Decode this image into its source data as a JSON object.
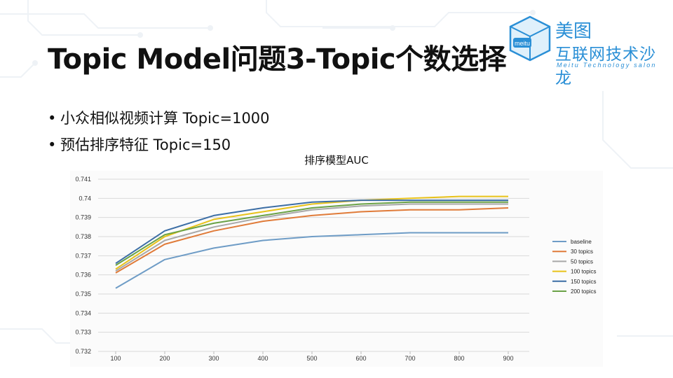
{
  "slide": {
    "title": "Topic Model问题3-Topic个数选择",
    "bullets": [
      {
        "text": "小众相似视频计算 Topic=1000"
      },
      {
        "text": "预估排序特征 Topic=150"
      }
    ]
  },
  "logo": {
    "box_text": "meitu",
    "line1": "美图",
    "line2": "互联网技术沙龙",
    "line3": "Meitu Technology salon",
    "color": "#2a8fd6"
  },
  "chart_data": {
    "type": "line",
    "title": "排序模型AUC",
    "xlabel": "",
    "ylabel": "",
    "x": [
      100,
      200,
      300,
      400,
      500,
      600,
      700,
      800,
      900
    ],
    "x_tick_labels": [
      "100",
      "200",
      "300",
      "400",
      "500",
      "600",
      "700",
      "800",
      "900"
    ],
    "ylim": [
      0.732,
      0.741
    ],
    "y_ticks": [
      0.732,
      0.733,
      0.734,
      0.735,
      0.736,
      0.737,
      0.738,
      0.739,
      0.74,
      0.741
    ],
    "y_tick_labels": [
      "0.732",
      "0.733",
      "0.734",
      "0.735",
      "0.736",
      "0.737",
      "0.738",
      "0.739",
      "0.74",
      "0.741"
    ],
    "grid": true,
    "legend_position": "right",
    "series": [
      {
        "name": "baseline",
        "color": "#6e9cc6",
        "values": [
          0.7353,
          0.7368,
          0.7374,
          0.7378,
          0.738,
          0.7381,
          0.7382,
          0.7382,
          0.7382
        ]
      },
      {
        "name": "30 topics",
        "color": "#e07b39",
        "values": [
          0.7361,
          0.7376,
          0.7383,
          0.7388,
          0.7391,
          0.7393,
          0.7394,
          0.7394,
          0.7395
        ]
      },
      {
        "name": "50 topics",
        "color": "#a8a8a8",
        "values": [
          0.7362,
          0.7378,
          0.7385,
          0.739,
          0.7394,
          0.7396,
          0.7397,
          0.7397,
          0.7397
        ]
      },
      {
        "name": "100 topics",
        "color": "#e8c21a",
        "values": [
          0.7363,
          0.738,
          0.7389,
          0.7393,
          0.7397,
          0.7399,
          0.74,
          0.7401,
          0.7401
        ]
      },
      {
        "name": "150 topics",
        "color": "#3c6ea5",
        "values": [
          0.7366,
          0.7383,
          0.7391,
          0.7395,
          0.7398,
          0.7399,
          0.7399,
          0.7399,
          0.7399
        ]
      },
      {
        "name": "200 topics",
        "color": "#6aa246",
        "values": [
          0.7365,
          0.7381,
          0.7387,
          0.7391,
          0.7395,
          0.7397,
          0.7398,
          0.7398,
          0.7398
        ]
      }
    ]
  }
}
